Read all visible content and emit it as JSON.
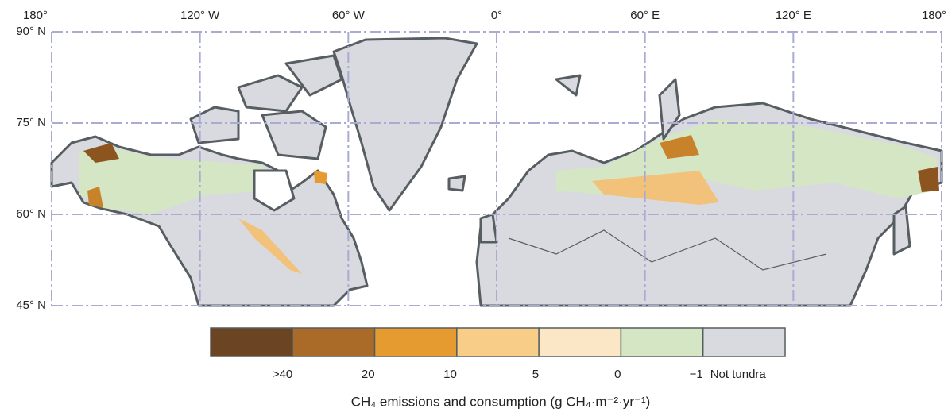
{
  "map": {
    "longitude_labels": [
      "180°",
      "120° W",
      "60° W",
      "0°",
      "60° E",
      "120° E",
      "180°"
    ],
    "latitude_labels": [
      "90° N",
      "75° N",
      "60° N",
      "45° N"
    ]
  },
  "legend": {
    "colors": [
      "#6b4523",
      "#a96b27",
      "#e69b30",
      "#f7cd88",
      "#fbe6c6",
      "#d4e6c3",
      "#d9dadf"
    ],
    "labels": [
      ">40",
      "20",
      "10",
      "5",
      "0",
      "−1",
      "Not tundra"
    ],
    "title": "CH₄ emissions and consumption (g CH₄·m⁻²·yr⁻¹)"
  }
}
